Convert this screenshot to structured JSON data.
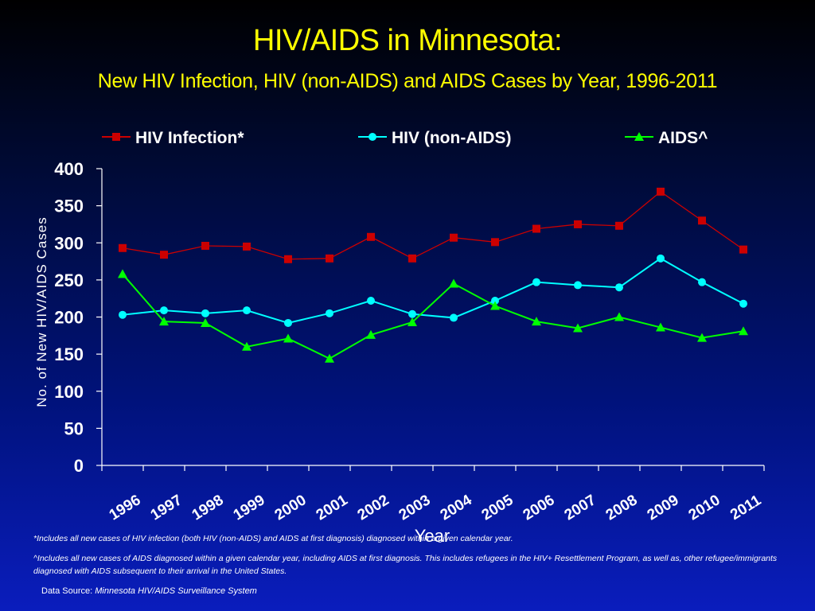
{
  "title": "HIV/AIDS in Minnesota:",
  "subtitle": "New HIV Infection, HIV (non-AIDS) and AIDS Cases by Year, 1996-2011",
  "footnotes": [
    "*Includes all new cases of HIV infection (both HIV (non-AIDS) and AIDS at first diagnosis) diagnosed within a given calendar year.",
    "^Includes all new cases of AIDS diagnosed within a given calendar year, including AIDS at first diagnosis. This includes refugees in the HIV+ Resettlement Program, as well as, other refugee/immigrants  diagnosed with AIDS subsequent to their arrival in the United States."
  ],
  "source_label": "Data Source:",
  "source_name": "Minnesota HIV/AIDS Surveillance System",
  "chart_data": {
    "type": "line",
    "xlabel": "Year",
    "ylabel": "No. of New HIV/AIDS Cases",
    "ylim": [
      0,
      400
    ],
    "yticks": [
      0,
      50,
      100,
      150,
      200,
      250,
      300,
      350,
      400
    ],
    "categories": [
      "1996",
      "1997",
      "1998",
      "1999",
      "2000",
      "2001",
      "2002",
      "2003",
      "2004",
      "2005",
      "2006",
      "2007",
      "2008",
      "2009",
      "2010",
      "2011"
    ],
    "legend_position": "top",
    "grid": false,
    "series": [
      {
        "name": "HIV Infection*",
        "color": "#cc0000",
        "marker": "square",
        "values": [
          293,
          284,
          296,
          295,
          278,
          279,
          308,
          279,
          307,
          301,
          319,
          325,
          323,
          369,
          330,
          291
        ]
      },
      {
        "name": "HIV (non-AIDS)",
        "color": "#00ffff",
        "marker": "circle",
        "values": [
          203,
          209,
          205,
          209,
          192,
          205,
          222,
          204,
          199,
          222,
          247,
          243,
          240,
          279,
          247,
          218
        ]
      },
      {
        "name": "AIDS^",
        "color": "#00ff00",
        "marker": "triangle",
        "values": [
          258,
          194,
          192,
          160,
          171,
          144,
          176,
          193,
          245,
          215,
          194,
          185,
          200,
          186,
          172,
          181
        ]
      }
    ]
  }
}
